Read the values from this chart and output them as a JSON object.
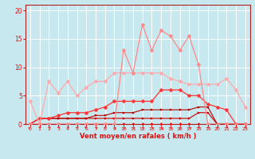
{
  "x": [
    0,
    1,
    2,
    3,
    4,
    5,
    6,
    7,
    8,
    9,
    10,
    11,
    12,
    13,
    14,
    15,
    16,
    17,
    18,
    19,
    20,
    21,
    22,
    23
  ],
  "series": [
    {
      "y": [
        0,
        0,
        0,
        0,
        0,
        0,
        0,
        0,
        0,
        0,
        0,
        0,
        0,
        0,
        0,
        0,
        0,
        0,
        0,
        0,
        0,
        0,
        0,
        0
      ],
      "color": "#FF0000",
      "lw": 0.8,
      "ms": 2.0,
      "marker": "D"
    },
    {
      "y": [
        0,
        1,
        1,
        1,
        1,
        1,
        1,
        1,
        1,
        1,
        1,
        1,
        1,
        1,
        1,
        1,
        1,
        1,
        2,
        2,
        0,
        0,
        0,
        0
      ],
      "color": "#CC0000",
      "lw": 0.8,
      "ms": 2.0,
      "marker": "s"
    },
    {
      "y": [
        0,
        1,
        1,
        1,
        1,
        1,
        1,
        1.5,
        1.5,
        2,
        2,
        2,
        2.5,
        2.5,
        2.5,
        2.5,
        2.5,
        2.5,
        3,
        3,
        0,
        0,
        0,
        0
      ],
      "color": "#BB0000",
      "lw": 0.8,
      "ms": 2.0,
      "marker": "s"
    },
    {
      "y": [
        0,
        1,
        1,
        1.5,
        2,
        2,
        2,
        2.5,
        3,
        4,
        4,
        4,
        4,
        4,
        6,
        6,
        6,
        5,
        5,
        3.5,
        3,
        2.5,
        0,
        0
      ],
      "color": "#FF3333",
      "lw": 0.9,
      "ms": 2.5,
      "marker": "D"
    },
    {
      "y": [
        4,
        0,
        7.5,
        5.5,
        7.5,
        5,
        6.5,
        7.5,
        7.5,
        9,
        9,
        9,
        9,
        9,
        9,
        8,
        7.5,
        7,
        7,
        7,
        7,
        8,
        6,
        3
      ],
      "color": "#FFAAAA",
      "lw": 0.9,
      "ms": 2.5,
      "marker": "D"
    },
    {
      "y": [
        0,
        0,
        0,
        0,
        0,
        0,
        0,
        0,
        0,
        0,
        13,
        9,
        17.5,
        13,
        16.5,
        15.5,
        13,
        15.5,
        10.5,
        0,
        0,
        0,
        0,
        0
      ],
      "color": "#FF8888",
      "lw": 0.9,
      "ms": 2.5,
      "marker": "D"
    }
  ],
  "wind_dirs": [
    135,
    270,
    240,
    270,
    255,
    270,
    90,
    225,
    270,
    225,
    225,
    225,
    225,
    225,
    225,
    225,
    225,
    225,
    270,
    270,
    270,
    270,
    270,
    270
  ],
  "xlabel": "Vent moyen/en rafales ( km/h )",
  "xlim": [
    -0.5,
    23.5
  ],
  "ylim": [
    0,
    21
  ],
  "yticks": [
    0,
    5,
    10,
    15,
    20
  ],
  "xticks": [
    0,
    1,
    2,
    3,
    4,
    5,
    6,
    7,
    8,
    9,
    10,
    11,
    12,
    13,
    14,
    15,
    16,
    17,
    18,
    19,
    20,
    21,
    22,
    23
  ],
  "bg_color": "#C8E8F0",
  "grid_color": "#FFFFFF",
  "tick_color": "#DD1111",
  "label_color": "#DD1111",
  "arrow_color": "#EE3333",
  "spine_color": "#AA2222"
}
